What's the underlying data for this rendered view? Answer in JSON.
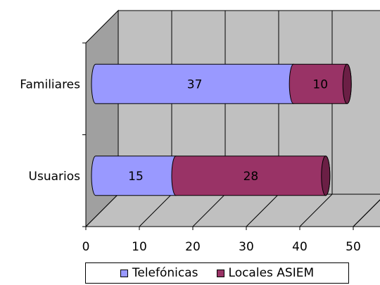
{
  "chart_data": {
    "type": "bar",
    "orientation": "horizontal",
    "stacked": true,
    "three_d": true,
    "categories": [
      "Familiares",
      "Usuarios"
    ],
    "series": [
      {
        "name": "Telefónicas",
        "values": [
          37,
          15
        ],
        "color": "#9999ff"
      },
      {
        "name": "Locales ASIEM",
        "values": [
          10,
          28
        ],
        "color": "#993366"
      }
    ],
    "data_labels": [
      [
        "37",
        "15"
      ],
      [
        "10",
        "28"
      ]
    ],
    "x_ticks": [
      "0",
      "10",
      "20",
      "30",
      "40",
      "50"
    ],
    "xlim": [
      0,
      50
    ],
    "grid": true,
    "legend_position": "bottom",
    "title": "",
    "xlabel": "",
    "ylabel": ""
  },
  "colors": {
    "wall": "#c0c0c0",
    "side_wall": "#a0a0a0",
    "floor": "#c0c0c0"
  }
}
